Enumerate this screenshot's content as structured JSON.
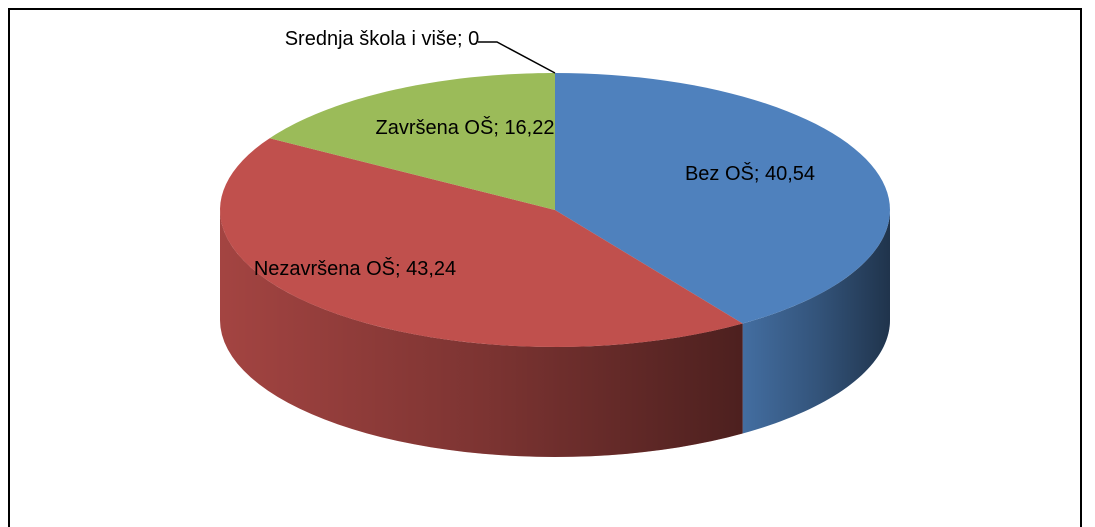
{
  "chart_data": {
    "type": "pie3d",
    "categories": [
      "Bez OŠ",
      "Nezavršena OŠ",
      "Završena OŠ",
      "Srednja škola i više"
    ],
    "values": [
      40.54,
      43.24,
      16.22,
      0
    ],
    "value_labels": [
      "40,54",
      "43,24",
      "16,22",
      "0"
    ],
    "separator": "; ",
    "colors": [
      "#4f81bd",
      "#c0504d",
      "#9bbb59",
      "#8064a2"
    ]
  }
}
